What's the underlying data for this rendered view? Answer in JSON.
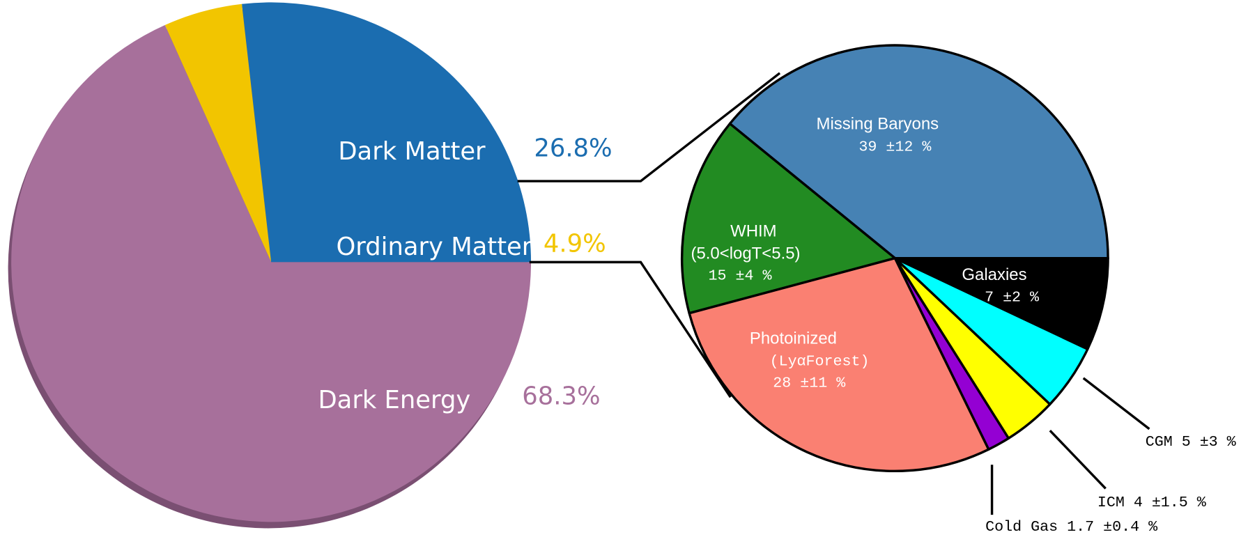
{
  "chart_data": [
    {
      "type": "pie",
      "categories": [
        "Dark Matter",
        "Ordinary Matter",
        "Dark Energy"
      ],
      "values": [
        26.8,
        4.9,
        68.3
      ],
      "value_labels": [
        "26.8%",
        "4.9%",
        "68.3%"
      ],
      "colors": [
        "#1b6db0",
        "#f2c500",
        "#a7709b"
      ]
    },
    {
      "type": "pie",
      "categories": [
        "Missing Baryons",
        [
          "WHIM",
          "(5.0<logT<5.5)"
        ],
        [
          "Photoinized",
          "(LyαForest)"
        ],
        "Cold Gas",
        "ICM",
        "CGM",
        "Galaxies"
      ],
      "values": [
        39,
        15,
        28,
        1.7,
        4,
        5,
        7
      ],
      "value_labels": [
        "39 ±12 %",
        "15 ±4 %",
        "28 ±11 %",
        "1.7 ±0.4 %",
        "4 ±1.5 %",
        "5 ±3 %",
        "7 ±2 %"
      ],
      "colors": [
        "#4682b4",
        "#228b22",
        "#fa8072",
        "#9400d3",
        "#ffff00",
        "#00ffff",
        "#000000"
      ]
    }
  ]
}
